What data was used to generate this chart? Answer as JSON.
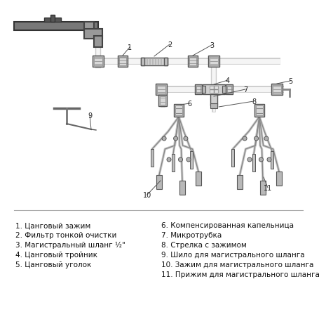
{
  "bg_color": "#ffffff",
  "legend_items_left": [
    "1. Цанговый зажим",
    "2. Фильтр тонкой очистки",
    "3. Магистральный шланг ½\"",
    "4. Цанговый тройник",
    "5. Цанговый уголок"
  ],
  "legend_items_right": [
    "6. Компенсированная капельница",
    "7. Микротрубка",
    "8. Стрелка с зажимом",
    "9. Шило для магистрального шланга",
    "10. Зажим для магистрального шланга",
    "11. Прижим для магистрального шланга"
  ]
}
